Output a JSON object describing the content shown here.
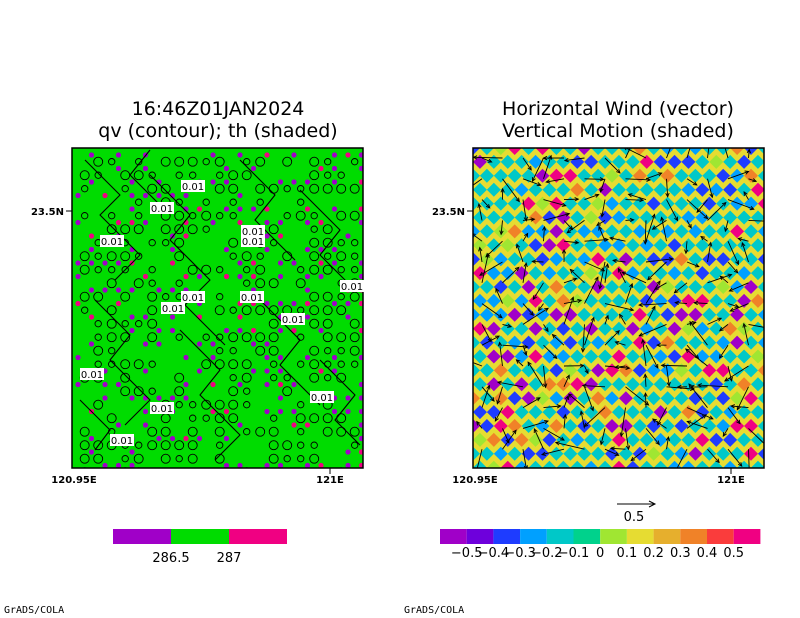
{
  "chart_data": [
    {
      "type": "heatmap",
      "title_lines": [
        "16:46Z01JAN2024",
        "qv (contour); th (shaded)"
      ],
      "x_ticks": [
        "120.95E",
        "121E"
      ],
      "y_ticks": [
        "23.5N"
      ],
      "shading_variable": "th",
      "contour_variable": "qv",
      "colorbar": {
        "labels": [
          "286.5",
          "287"
        ],
        "colors": [
          "#a000c8",
          "#00dc00",
          "#f00082"
        ]
      },
      "contour_labels": [
        "0.01",
        "0.01",
        "0.01",
        "0.01",
        "0.01",
        "0.01",
        "0.01",
        "0.01",
        "0.01",
        "0.01",
        "0.01",
        "0.01",
        "0.01",
        "0.01"
      ],
      "dominant_color": "#00dc00",
      "grid": false
    },
    {
      "type": "heatmap",
      "title_lines": [
        "Horizontal Wind (vector)",
        "Vertical Motion (shaded)"
      ],
      "x_ticks": [
        "120.95E",
        "121E"
      ],
      "y_ticks": [
        "23.5N"
      ],
      "vector_reference": "0.5",
      "colorbar": {
        "labels": [
          "−0.5",
          "−0.4",
          "−0.3",
          "−0.2",
          "−0.1",
          "0",
          "0.1",
          "0.2",
          "0.3",
          "0.4",
          "0.5"
        ],
        "colors": [
          "#a000c8",
          "#6e00dc",
          "#1e3cff",
          "#00a0ff",
          "#00c8c8",
          "#00d28c",
          "#a0e632",
          "#e6dc32",
          "#e6af2d",
          "#f08228",
          "#fa3c3c",
          "#f00082"
        ]
      },
      "grid": false
    }
  ],
  "credits": [
    "GrADS/COLA",
    "GrADS/COLA"
  ]
}
